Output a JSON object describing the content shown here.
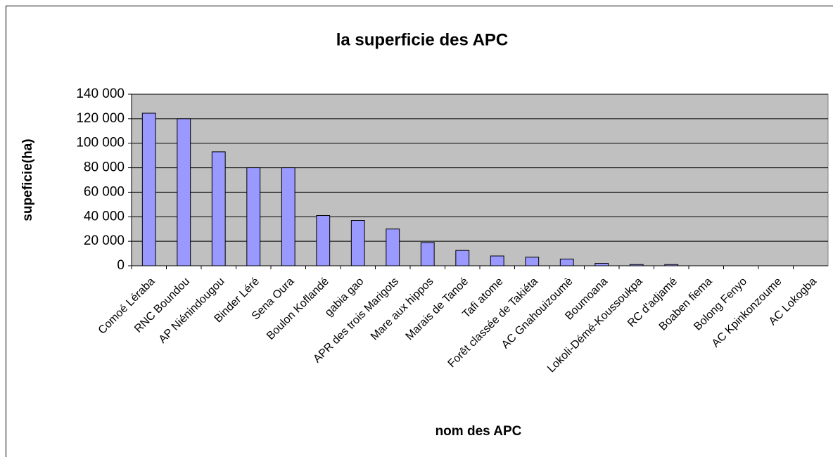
{
  "chart_data": {
    "type": "bar",
    "title": "la superficie des APC",
    "xlabel": "nom des APC",
    "ylabel": "supeficie(ha)",
    "categories": [
      "Comoé Léraba",
      "RNC Boundou",
      "AP Niénindougou",
      "Binder Léré",
      "Sena Oura",
      "Boulon Koflandé",
      "gabia gao",
      "APR des trois Marigots",
      "Mare aux hippos",
      "Marais de Tanoé",
      "Tafi atome",
      "Forêt classée de Takiéta",
      "AC Gnahouizoumè",
      "Boumoana",
      "Lokoli-Démé-Koussoukpa",
      "RC d'adjamé",
      "Boaben fiema",
      "Bolong Fenyo",
      "AC Kpinkonzoume",
      "AC Lokogba"
    ],
    "values": [
      124500,
      120000,
      93000,
      80000,
      80000,
      41000,
      37000,
      30000,
      19000,
      12500,
      8000,
      7000,
      5500,
      2000,
      1000,
      1000,
      0,
      0,
      0,
      0
    ],
    "color": "#9999ff",
    "plot_background": "#c0c0c0",
    "ylim": [
      0,
      140000
    ],
    "yticks": [
      0,
      {
        "value": 20000,
        "label": "20 000"
      },
      {
        "value": 40000,
        "label": "40 000"
      },
      {
        "value": 60000,
        "label": "60 000"
      },
      {
        "value": 80000,
        "label": "80 000"
      },
      {
        "value": 100000,
        "label": "100 000"
      },
      {
        "value": 120000,
        "label": "120 000"
      },
      {
        "value": 140000,
        "label": "140 000"
      }
    ],
    "grid": true
  }
}
